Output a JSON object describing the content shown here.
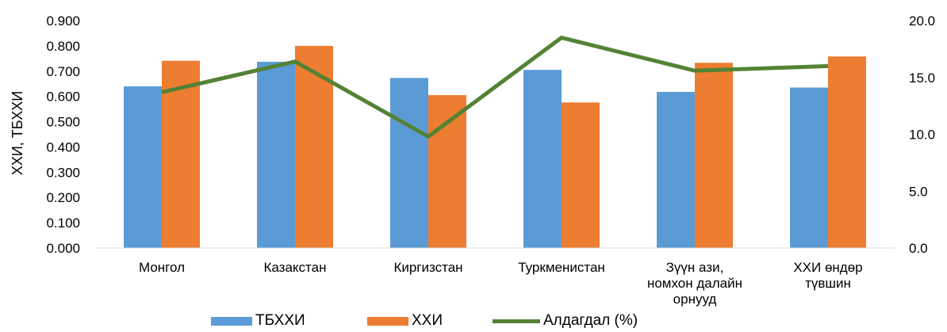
{
  "chart_data": {
    "type": "bar",
    "categories": [
      "Монгол",
      "Казакстан",
      "Киргизстан",
      "Туркменистан",
      "Зүүн ази,\nномхон далайн\nорнууд",
      "ХХИ өндөр\nтүвшин"
    ],
    "series": [
      {
        "name": "ТБХХИ",
        "type": "bar",
        "axis": "left",
        "color": "#5B9BD5",
        "values": [
          0.64,
          0.737,
          0.673,
          0.705,
          0.618,
          0.635
        ]
      },
      {
        "name": "ХХИ",
        "type": "bar",
        "axis": "left",
        "color": "#ED7D31",
        "values": [
          0.741,
          0.8,
          0.605,
          0.576,
          0.733,
          0.758
        ]
      },
      {
        "name": "Алдагдал (%)",
        "type": "line",
        "axis": "right",
        "color": "#548235",
        "values": [
          13.7,
          16.4,
          9.8,
          18.5,
          15.6,
          16.0
        ]
      }
    ],
    "ylabel": "ХХИ, ТБХХИ",
    "ylim": [
      0,
      0.9
    ],
    "y_ticks": [
      "0.000",
      "0.100",
      "0.200",
      "0.300",
      "0.400",
      "0.500",
      "0.600",
      "0.700",
      "0.800",
      "0.900"
    ],
    "y2lim": [
      0,
      20
    ],
    "y2_ticks": [
      "0.0",
      "5.0",
      "10.0",
      "15.0",
      "20.0"
    ],
    "grid": false,
    "legend": "bottom"
  }
}
